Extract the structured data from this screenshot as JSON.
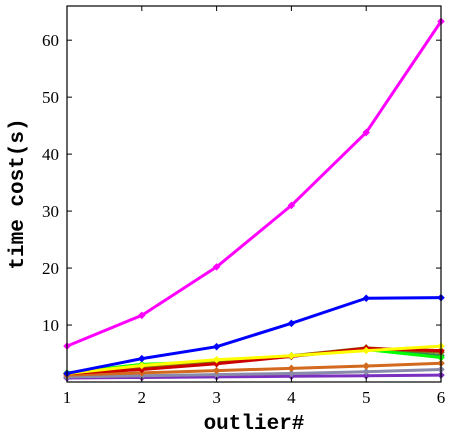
{
  "chart_data": {
    "type": "line",
    "title": "",
    "xlabel": "outlier#",
    "ylabel": "time cost(s)",
    "xlim": [
      1,
      6
    ],
    "ylim": [
      0,
      66
    ],
    "xticks": [
      1,
      2,
      3,
      4,
      5,
      6
    ],
    "yticks": [
      10,
      20,
      30,
      40,
      50,
      60
    ],
    "grid": false,
    "x": [
      1,
      2,
      3,
      4,
      5,
      6
    ],
    "series": [
      {
        "color": "#ff00ff",
        "values": [
          6.3,
          11.7,
          20.2,
          31.0,
          43.8,
          63.3
        ]
      },
      {
        "color": "#0000ff",
        "values": [
          1.5,
          4.1,
          6.2,
          10.3,
          14.7,
          14.8
        ]
      },
      {
        "color": "#ffff00",
        "values": [
          1.5,
          2.9,
          3.9,
          4.6,
          5.5,
          6.3
        ]
      },
      {
        "color": "#cc0000",
        "values": [
          1.5,
          2.2,
          3.2,
          4.5,
          5.9,
          5.5
        ]
      },
      {
        "color": "#8b6914",
        "values": [
          1.5,
          2.6,
          3.6,
          4.6,
          6.0,
          5.2
        ]
      },
      {
        "color": "#00ff00",
        "values": [
          1.6,
          3.1,
          3.6,
          4.6,
          5.7,
          4.3
        ]
      },
      {
        "color": "#2e8b57",
        "values": [
          1.5,
          2.8,
          3.4,
          4.5,
          5.8,
          4.6
        ]
      },
      {
        "color": "#d2691e",
        "values": [
          1.2,
          1.6,
          2.0,
          2.4,
          2.8,
          3.3
        ]
      },
      {
        "color": "#8a8aaa",
        "values": [
          0.9,
          1.1,
          1.3,
          1.5,
          1.8,
          2.2
        ]
      },
      {
        "color": "#7b2fbe",
        "values": [
          0.7,
          0.8,
          0.9,
          1.0,
          1.1,
          1.2
        ]
      }
    ]
  }
}
